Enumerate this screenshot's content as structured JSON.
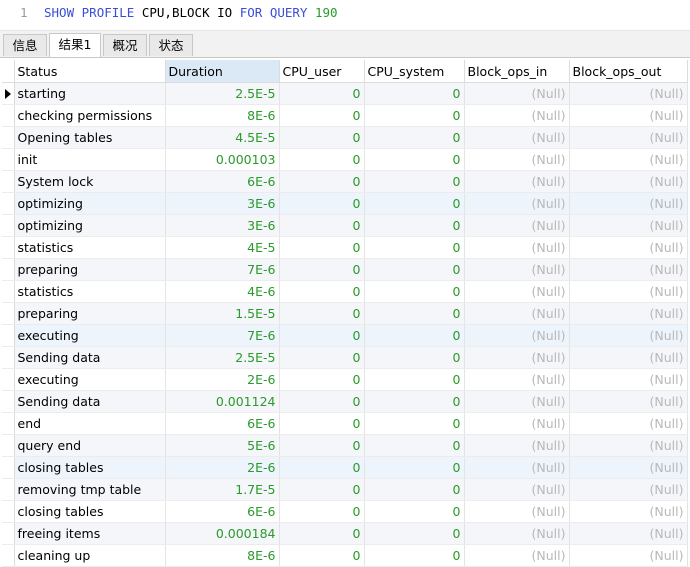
{
  "editor": {
    "line_number": "1",
    "kw_show": "SHOW",
    "kw_profile": "PROFILE",
    "args": "CPU,BLOCK IO",
    "kw_for": "FOR",
    "kw_query": "QUERY",
    "query_id": "190"
  },
  "tabs": [
    {
      "label": "信息",
      "active": false
    },
    {
      "label": "结果1",
      "active": true
    },
    {
      "label": "概况",
      "active": false
    },
    {
      "label": "状态",
      "active": false
    }
  ],
  "table": {
    "columns": [
      "Status",
      "Duration",
      "CPU_user",
      "CPU_system",
      "Block_ops_in",
      "Block_ops_out"
    ],
    "sorted_column": "Duration",
    "null_text": "(Null)",
    "rows": [
      [
        "starting",
        "2.5E-5",
        "0",
        "0"
      ],
      [
        "checking permissions",
        "8E-6",
        "0",
        "0"
      ],
      [
        "Opening tables",
        "4.5E-5",
        "0",
        "0"
      ],
      [
        "init",
        "0.000103",
        "0",
        "0"
      ],
      [
        "System lock",
        "6E-6",
        "0",
        "0"
      ],
      [
        "optimizing",
        "3E-6",
        "0",
        "0"
      ],
      [
        "optimizing",
        "3E-6",
        "0",
        "0"
      ],
      [
        "statistics",
        "4E-5",
        "0",
        "0"
      ],
      [
        "preparing",
        "7E-6",
        "0",
        "0"
      ],
      [
        "statistics",
        "4E-6",
        "0",
        "0"
      ],
      [
        "preparing",
        "1.5E-5",
        "0",
        "0"
      ],
      [
        "executing",
        "7E-6",
        "0",
        "0"
      ],
      [
        "Sending data",
        "2.5E-5",
        "0",
        "0"
      ],
      [
        "executing",
        "2E-6",
        "0",
        "0"
      ],
      [
        "Sending data",
        "0.001124",
        "0",
        "0"
      ],
      [
        "end",
        "6E-6",
        "0",
        "0"
      ],
      [
        "query end",
        "5E-6",
        "0",
        "0"
      ],
      [
        "closing tables",
        "2E-6",
        "0",
        "0"
      ],
      [
        "removing tmp table",
        "1.7E-5",
        "0",
        "0"
      ],
      [
        "closing tables",
        "6E-6",
        "0",
        "0"
      ],
      [
        "freeing items",
        "0.000184",
        "0",
        "0"
      ],
      [
        "cleaning up",
        "8E-6",
        "0",
        "0"
      ]
    ],
    "selected_row": 0,
    "highlight_rows": [
      5,
      11,
      17
    ]
  }
}
